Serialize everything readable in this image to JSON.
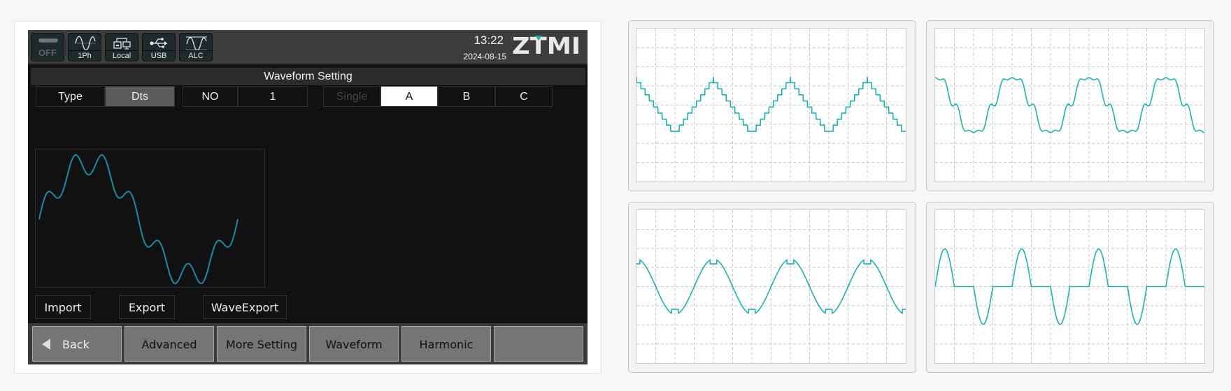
{
  "device": {
    "status_icons": [
      {
        "icon": "output-off-icon",
        "label": "OFF"
      },
      {
        "icon": "single-phase-wave-icon",
        "label": "1Ph"
      },
      {
        "icon": "local-network-icon",
        "label": "Local"
      },
      {
        "icon": "usb-icon",
        "label": "USB"
      },
      {
        "icon": "alc-wave-icon",
        "label": "ALC"
      }
    ],
    "time": "13:22",
    "date": "2024-08-15",
    "logo": "ZTMI",
    "title": "Waveform Setting",
    "tabs": {
      "type_label": "Type",
      "type_value": "Dts",
      "no_label": "NO",
      "no_value": "1",
      "single": "Single",
      "phases": [
        "A",
        "B",
        "C"
      ],
      "selected_phase": "A"
    },
    "preview_waveform": "fundamental-with-harmonics",
    "file_buttons": [
      "Import",
      "Export",
      "WaveExport"
    ],
    "softkeys": [
      "Back",
      "Advanced",
      "More Setting",
      "Waveform",
      "Harmonic",
      ""
    ],
    "colors": {
      "wave": "#1a8aa8",
      "accent": "#1ab3b0"
    }
  },
  "examples": {
    "waveforms": [
      "stepped-triangle",
      "harmonic-distorted",
      "notched-sine",
      "pulsed-half-sine"
    ],
    "wave_color": "#1ab3b0",
    "grid": "dashed"
  }
}
